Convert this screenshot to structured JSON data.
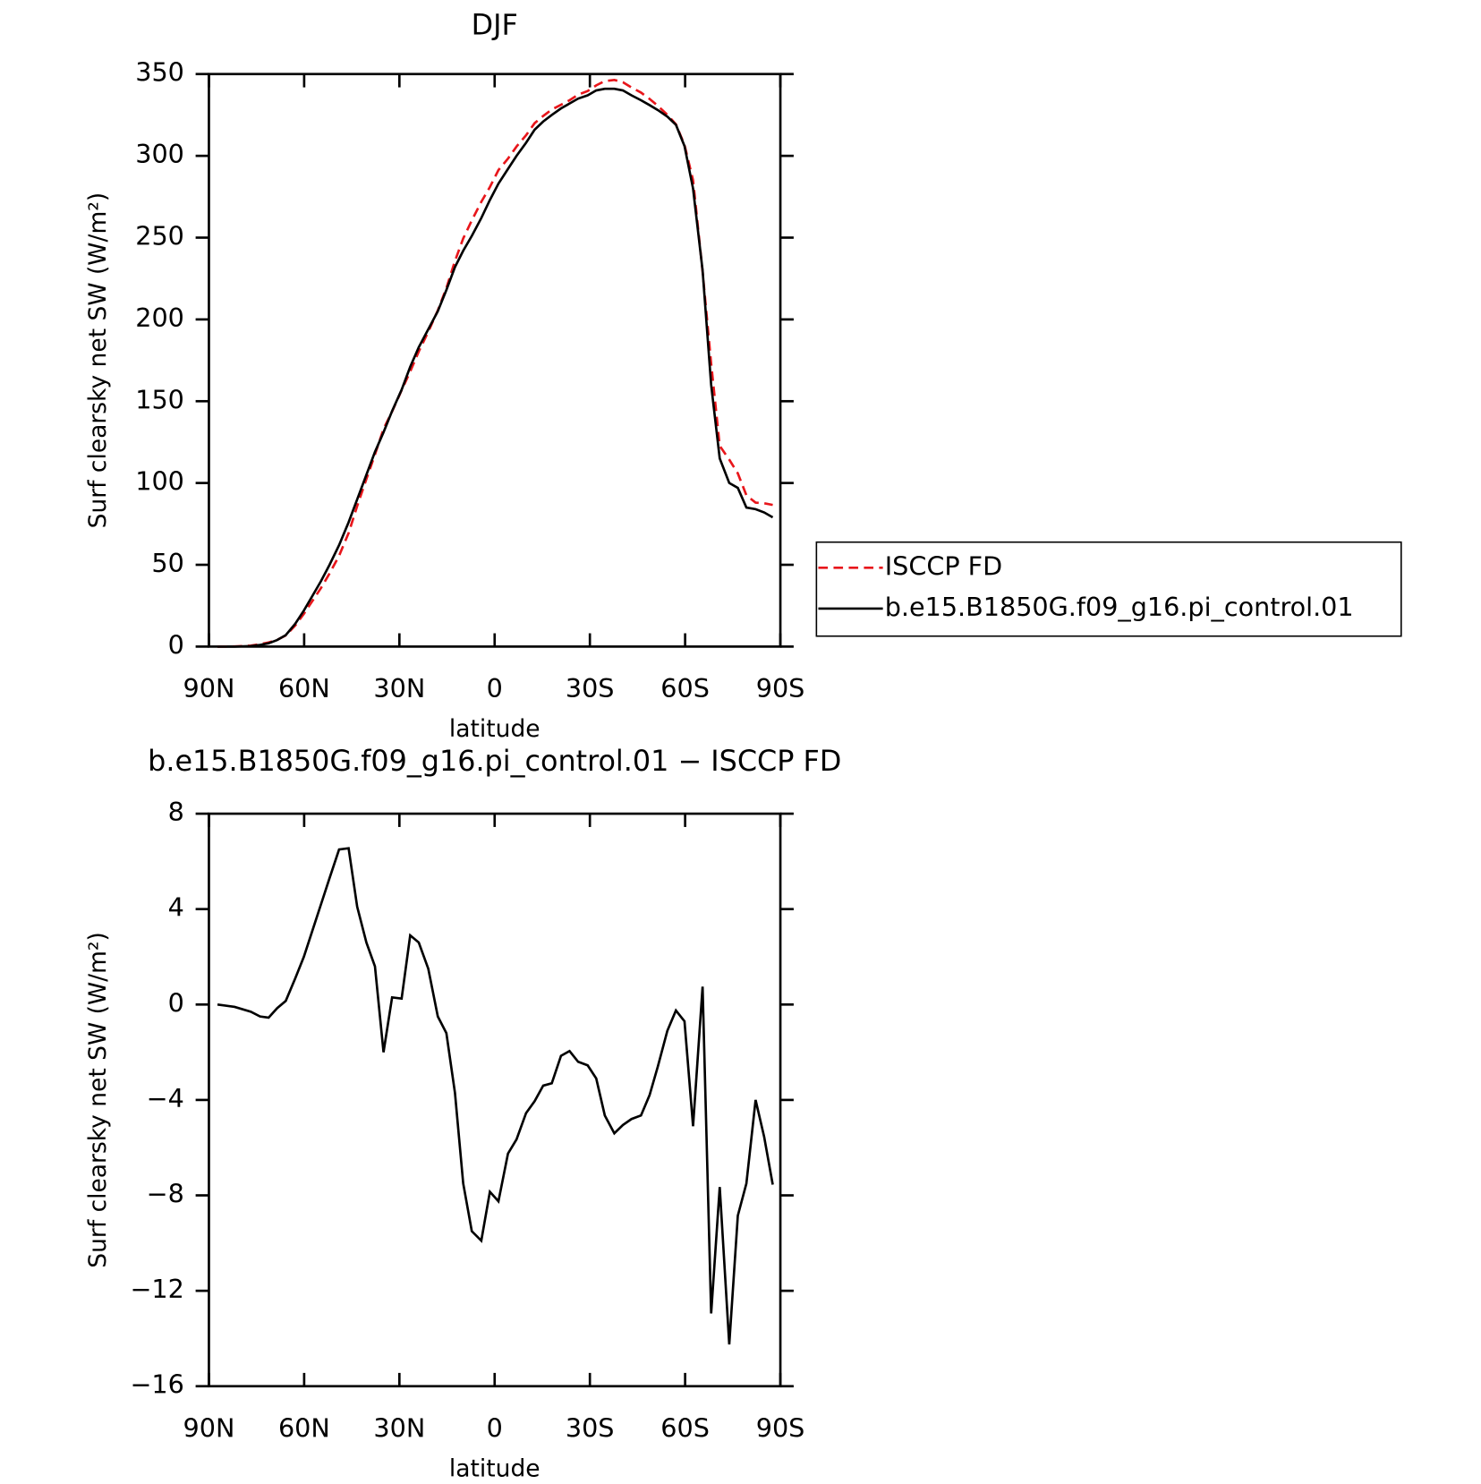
{
  "chart_data": [
    {
      "type": "line",
      "title": "DJF",
      "xlabel": "latitude",
      "ylabel": "Surf clearsky net SW (W/m²)",
      "xlim": [
        90,
        -90
      ],
      "ylim": [
        0,
        350
      ],
      "xticks": [
        {
          "value": 90,
          "label": "90N"
        },
        {
          "value": 60,
          "label": "60N"
        },
        {
          "value": 30,
          "label": "30N"
        },
        0,
        {
          "value": -30,
          "label": "30S"
        },
        {
          "value": -60,
          "label": "60S"
        },
        {
          "value": -90,
          "label": "90S"
        }
      ],
      "yticks": [
        0,
        50,
        100,
        150,
        200,
        250,
        300,
        350
      ],
      "legend": "right",
      "x": [
        87.3,
        81.9,
        76.8,
        73.9,
        71.2,
        68.5,
        65.8,
        62.8,
        60.1,
        57.4,
        54.7,
        52.0,
        49.0,
        46.0,
        43.3,
        40.4,
        37.7,
        35.0,
        32.3,
        29.3,
        26.6,
        23.9,
        20.9,
        17.9,
        15.2,
        12.5,
        9.9,
        7.2,
        4.2,
        1.5,
        -1.2,
        -4.2,
        -6.9,
        -9.9,
        -12.6,
        -15.3,
        -18.0,
        -20.9,
        -23.6,
        -26.3,
        -29.3,
        -32.0,
        -34.7,
        -37.7,
        -40.4,
        -43.1,
        -46.1,
        -48.8,
        -51.4,
        -54.4,
        -57.1,
        -59.8,
        -62.5,
        -65.5,
        -68.2,
        -70.9,
        -73.9,
        -76.6,
        -79.3,
        -82.2,
        -84.9,
        -87.6
      ],
      "series": [
        {
          "name": "ISCCP FD",
          "color": "#e8161b",
          "dash": "dashed",
          "values": [
            0,
            0.1,
            0.6,
            1.5,
            2.5,
            4.1,
            6.8,
            12.9,
            20,
            27.9,
            35.8,
            44.7,
            55.5,
            69.4,
            85.9,
            102.4,
            117.4,
            133,
            143.7,
            156.7,
            168.1,
            180.4,
            192.5,
            205.5,
            219.2,
            235.7,
            249.5,
            260.5,
            271.9,
            280.9,
            291.3,
            298.3,
            305.7,
            312.6,
            320,
            324.4,
            328.3,
            331.2,
            334,
            337.4,
            339.6,
            343.1,
            345.7,
            346.4,
            345,
            341.8,
            338.7,
            334.8,
            330.6,
            325.1,
            319.3,
            306.7,
            285.1,
            229.3,
            173,
            122.7,
            114.3,
            105.9,
            92.5,
            88,
            87.6,
            86.6
          ]
        },
        {
          "name": "b.e15.B1850G.f09_g16.pi_control.01",
          "color": "#000000",
          "dash": "solid",
          "values": [
            0,
            0,
            0.3,
            1,
            2,
            4,
            7,
            14,
            22,
            31,
            40,
            50,
            62,
            76,
            90,
            105,
            119,
            131,
            144,
            157,
            171,
            183,
            194,
            205,
            218,
            232,
            242,
            251,
            262,
            273,
            283,
            292,
            300,
            308,
            316,
            321,
            325,
            329,
            332,
            335,
            337,
            340,
            341,
            341,
            340,
            337,
            334,
            331,
            328,
            324,
            319,
            306,
            280,
            230,
            160,
            115,
            100,
            97,
            85,
            84,
            82,
            79
          ]
        }
      ]
    },
    {
      "type": "line",
      "title": "b.e15.B1850G.f09_g16.pi_control.01 − ISCCP FD",
      "xlabel": "latitude",
      "ylabel": "Surf clearsky net SW (W/m²)",
      "xlim": [
        90,
        -90
      ],
      "ylim": [
        -16,
        8
      ],
      "xticks": [
        {
          "value": 90,
          "label": "90N"
        },
        {
          "value": 60,
          "label": "60N"
        },
        {
          "value": 30,
          "label": "30N"
        },
        0,
        {
          "value": -30,
          "label": "30S"
        },
        {
          "value": -60,
          "label": "60S"
        },
        {
          "value": -90,
          "label": "90S"
        }
      ],
      "yticks": [
        {
          "value": -16,
          "label": "−16"
        },
        {
          "value": -12,
          "label": "−12"
        },
        {
          "value": -8,
          "label": "−8"
        },
        {
          "value": -4,
          "label": "−4"
        },
        0,
        4,
        8
      ],
      "x": [
        87.3,
        81.9,
        76.8,
        73.9,
        71.2,
        68.5,
        65.8,
        62.8,
        60.1,
        57.4,
        54.7,
        52.0,
        49.0,
        46.0,
        43.3,
        40.4,
        37.7,
        35.0,
        32.3,
        29.3,
        26.6,
        23.9,
        20.9,
        17.9,
        15.2,
        12.5,
        9.9,
        7.2,
        4.2,
        1.5,
        -1.2,
        -4.2,
        -6.9,
        -9.9,
        -12.6,
        -15.3,
        -18.0,
        -20.9,
        -23.6,
        -26.3,
        -29.3,
        -32.0,
        -34.7,
        -37.7,
        -40.4,
        -43.1,
        -46.1,
        -48.8,
        -51.4,
        -54.4,
        -57.1,
        -59.8,
        -62.5,
        -65.5,
        -68.2,
        -70.9,
        -73.9,
        -76.6,
        -79.3,
        -82.2,
        -84.9,
        -87.6
      ],
      "color": "#000000",
      "values": [
        0.0,
        -0.1,
        -0.3,
        -0.5,
        -0.55,
        -0.15,
        0.15,
        1.1,
        2.0,
        3.1,
        4.2,
        5.3,
        6.5,
        6.55,
        4.1,
        2.6,
        1.6,
        -2.0,
        0.3,
        0.25,
        2.9,
        2.6,
        1.5,
        -0.5,
        -1.2,
        -3.7,
        -7.5,
        -9.5,
        -9.9,
        -7.85,
        -8.25,
        -6.25,
        -5.65,
        -4.55,
        -4.05,
        -3.4,
        -3.3,
        -2.15,
        -1.95,
        -2.4,
        -2.55,
        -3.1,
        -4.65,
        -5.4,
        -5.05,
        -4.8,
        -4.65,
        -3.8,
        -2.6,
        -1.1,
        -0.25,
        -0.7,
        -5.1,
        0.75,
        -12.95,
        -7.65,
        -14.25,
        -8.85,
        -7.5,
        -4.0,
        -5.55,
        -7.55
      ]
    }
  ]
}
